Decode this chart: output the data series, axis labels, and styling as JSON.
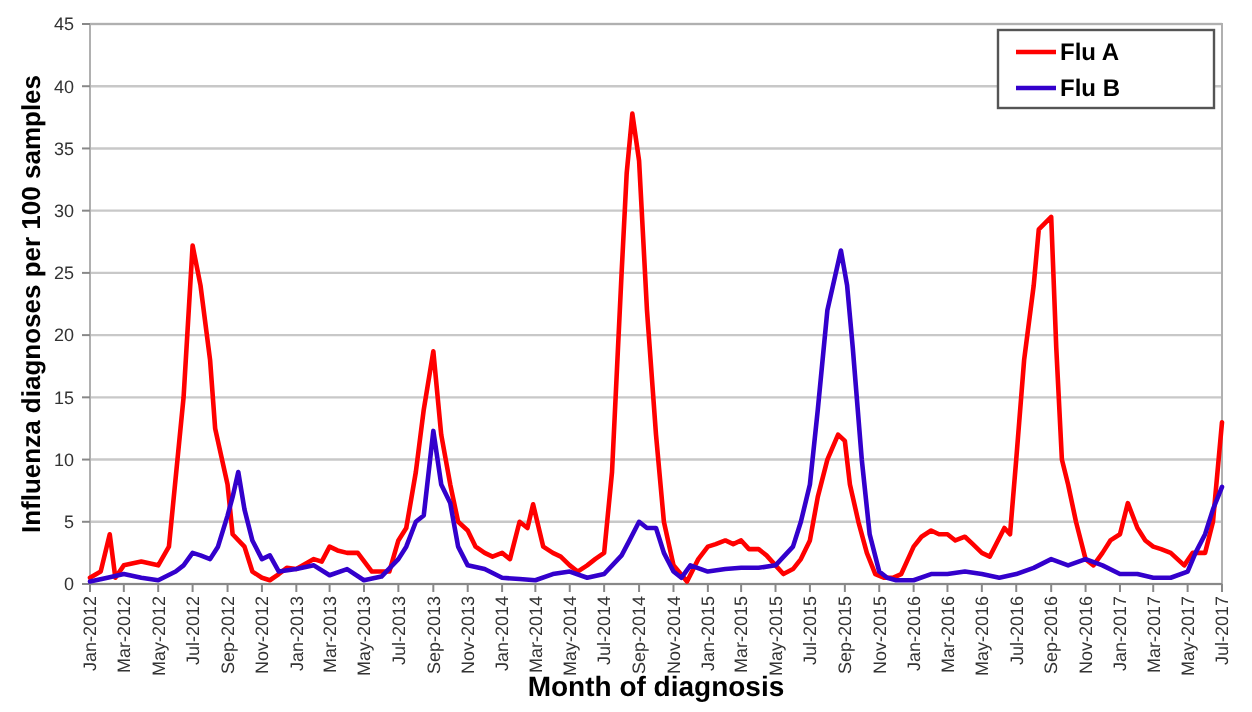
{
  "chart_data": {
    "type": "line",
    "xlabel": "Month of diagnosis",
    "ylabel": "Influenza diagnoses per 100 samples",
    "xlim": [
      "2012-01",
      "2017-07"
    ],
    "xticks": [
      {
        "value": "2012-01",
        "label": "Jan-2012"
      },
      {
        "value": "2012-03",
        "label": "Mar-2012"
      },
      {
        "value": "2012-05",
        "label": "May-2012"
      },
      {
        "value": "2012-07",
        "label": "Jul-2012"
      },
      {
        "value": "2012-09",
        "label": "Sep-2012"
      },
      {
        "value": "2012-11",
        "label": "Nov-2012"
      },
      {
        "value": "2013-01",
        "label": "Jan-2013"
      },
      {
        "value": "2013-03",
        "label": "Mar-2013"
      },
      {
        "value": "2013-05",
        "label": "May-2013"
      },
      {
        "value": "2013-07",
        "label": "Jul-2013"
      },
      {
        "value": "2013-09",
        "label": "Sep-2013"
      },
      {
        "value": "2013-11",
        "label": "Nov-2013"
      },
      {
        "value": "2014-01",
        "label": "Jan-2014"
      },
      {
        "value": "2014-03",
        "label": "Mar-2014"
      },
      {
        "value": "2014-05",
        "label": "May-2014"
      },
      {
        "value": "2014-07",
        "label": "Jul-2014"
      },
      {
        "value": "2014-09",
        "label": "Sep-2014"
      },
      {
        "value": "2014-11",
        "label": "Nov-2014"
      },
      {
        "value": "2015-01",
        "label": "Jan-2015"
      },
      {
        "value": "2015-03",
        "label": "Mar-2015"
      },
      {
        "value": "2015-05",
        "label": "May-2015"
      },
      {
        "value": "2015-07",
        "label": "Jul-2015"
      },
      {
        "value": "2015-09",
        "label": "Sep-2015"
      },
      {
        "value": "2015-11",
        "label": "Nov-2015"
      },
      {
        "value": "2016-01",
        "label": "Jan-2016"
      },
      {
        "value": "2016-03",
        "label": "Mar-2016"
      },
      {
        "value": "2016-05",
        "label": "May-2016"
      },
      {
        "value": "2016-07",
        "label": "Jul-2016"
      },
      {
        "value": "2016-09",
        "label": "Sep-2016"
      },
      {
        "value": "2016-11",
        "label": "Nov-2016"
      },
      {
        "value": "2017-01",
        "label": "Jan-2017"
      },
      {
        "value": "2017-03",
        "label": "Mar-2017"
      },
      {
        "value": "2017-05",
        "label": "May-2017"
      },
      {
        "value": "2017-07",
        "label": "Jul-2017"
      }
    ],
    "ylim": [
      0,
      45
    ],
    "yticks": [
      0,
      5,
      10,
      15,
      20,
      25,
      30,
      35,
      40,
      45
    ],
    "grid": "y",
    "legend": "top right",
    "marker": "none",
    "line_style": "solid",
    "series": [
      {
        "name": "Flu A",
        "color": "#ff0000",
        "x": [
          "2012-01-01",
          "2012-01-20",
          "2012-02-05",
          "2012-02-15",
          "2012-03-01",
          "2012-04-01",
          "2012-05-01",
          "2012-05-20",
          "2012-06-15",
          "2012-07-01",
          "2012-07-15",
          "2012-08-01",
          "2012-08-10",
          "2012-09-01",
          "2012-09-10",
          "2012-10-01",
          "2012-10-15",
          "2012-11-01",
          "2012-11-15",
          "2012-12-01",
          "2012-12-15",
          "2013-01-01",
          "2013-02-01",
          "2013-02-15",
          "2013-03-01",
          "2013-03-15",
          "2013-04-01",
          "2013-04-20",
          "2013-05-15",
          "2013-06-01",
          "2013-06-15",
          "2013-07-01",
          "2013-07-15",
          "2013-08-01",
          "2013-08-15",
          "2013-09-01",
          "2013-09-15",
          "2013-10-01",
          "2013-10-15",
          "2013-11-01",
          "2013-11-15",
          "2013-12-01",
          "2013-12-15",
          "2014-01-01",
          "2014-01-15",
          "2014-02-01",
          "2014-02-15",
          "2014-02-25",
          "2014-03-15",
          "2014-04-01",
          "2014-04-15",
          "2014-05-01",
          "2014-05-15",
          "2014-06-01",
          "2014-06-15",
          "2014-07-01",
          "2014-07-15",
          "2014-08-01",
          "2014-08-10",
          "2014-08-20",
          "2014-09-01",
          "2014-09-15",
          "2014-10-01",
          "2014-10-15",
          "2014-11-01",
          "2014-11-25",
          "2014-12-15",
          "2015-01-01",
          "2015-01-15",
          "2015-02-01",
          "2015-02-15",
          "2015-03-01",
          "2015-03-15",
          "2015-04-01",
          "2015-04-15",
          "2015-05-01",
          "2015-05-15",
          "2015-06-01",
          "2015-06-15",
          "2015-07-01",
          "2015-07-15",
          "2015-08-01",
          "2015-08-20",
          "2015-09-01",
          "2015-09-10",
          "2015-09-25",
          "2015-10-10",
          "2015-10-25",
          "2015-11-10",
          "2015-11-25",
          "2015-12-10",
          "2016-01-01",
          "2016-01-15",
          "2016-02-01",
          "2016-02-15",
          "2016-03-01",
          "2016-03-15",
          "2016-04-01",
          "2016-04-15",
          "2016-05-01",
          "2016-05-15",
          "2016-06-10",
          "2016-06-20",
          "2016-07-01",
          "2016-07-15",
          "2016-08-01",
          "2016-08-10",
          "2016-09-01",
          "2016-09-10",
          "2016-09-20",
          "2016-10-01",
          "2016-10-15",
          "2016-11-01",
          "2016-11-15",
          "2016-12-01",
          "2016-12-15",
          "2017-01-01",
          "2017-01-15",
          "2017-02-01",
          "2017-02-15",
          "2017-03-01",
          "2017-03-15",
          "2017-04-01",
          "2017-04-25",
          "2017-05-10",
          "2017-06-01",
          "2017-06-15",
          "2017-07-01"
        ],
        "values": [
          0.5,
          1,
          4,
          0.5,
          1.5,
          1.8,
          1.5,
          3,
          15,
          27.2,
          24,
          18,
          12.5,
          8,
          4,
          3,
          1,
          0.5,
          0.3,
          0.8,
          1.3,
          1.2,
          2,
          1.8,
          3,
          2.7,
          2.5,
          2.5,
          1,
          1,
          1,
          3.5,
          4.5,
          9,
          14,
          18.7,
          12,
          8,
          5,
          4.3,
          3,
          2.5,
          2.2,
          2.5,
          2,
          5,
          4.5,
          6.4,
          3,
          2.5,
          2.2,
          1.5,
          1,
          1.5,
          2,
          2.5,
          9,
          25,
          33,
          37.8,
          34,
          22,
          12,
          5,
          1.5,
          0.2,
          2,
          3,
          3.2,
          3.5,
          3.2,
          3.5,
          2.8,
          2.8,
          2.3,
          1.5,
          0.8,
          1.2,
          2,
          3.5,
          7,
          10,
          12,
          11.5,
          8,
          5,
          2.5,
          0.8,
          0.5,
          0.5,
          0.8,
          3,
          3.8,
          4.3,
          4,
          4,
          3.5,
          3.8,
          3.2,
          2.5,
          2.2,
          4.5,
          4,
          10,
          18,
          24,
          28.5,
          29.5,
          19,
          10,
          8,
          5,
          2,
          1.5,
          2.5,
          3.5,
          4,
          6.5,
          4.5,
          3.5,
          3,
          2.8,
          2.5,
          1.5,
          2.5,
          2.5,
          5,
          13
        ]
      },
      {
        "name": "Flu B",
        "color": "#3300cc",
        "x": [
          "2012-01-01",
          "2012-02-01",
          "2012-03-01",
          "2012-04-01",
          "2012-05-01",
          "2012-06-01",
          "2012-06-15",
          "2012-07-01",
          "2012-07-15",
          "2012-08-01",
          "2012-08-15",
          "2012-09-01",
          "2012-09-10",
          "2012-09-20",
          "2012-10-01",
          "2012-10-15",
          "2012-11-01",
          "2012-11-15",
          "2012-12-01",
          "2013-01-01",
          "2013-02-01",
          "2013-03-01",
          "2013-04-01",
          "2013-05-01",
          "2013-06-01",
          "2013-07-01",
          "2013-07-15",
          "2013-08-01",
          "2013-08-15",
          "2013-09-01",
          "2013-09-15",
          "2013-10-01",
          "2013-10-15",
          "2013-11-01",
          "2013-12-01",
          "2014-01-01",
          "2014-02-01",
          "2014-03-01",
          "2014-04-01",
          "2014-05-01",
          "2014-06-01",
          "2014-07-01",
          "2014-08-01",
          "2014-08-15",
          "2014-09-01",
          "2014-09-15",
          "2014-10-01",
          "2014-10-15",
          "2014-11-01",
          "2014-11-15",
          "2014-12-01",
          "2015-01-01",
          "2015-02-01",
          "2015-03-01",
          "2015-04-01",
          "2015-05-01",
          "2015-06-01",
          "2015-06-15",
          "2015-07-01",
          "2015-07-15",
          "2015-08-01",
          "2015-08-25",
          "2015-09-05",
          "2015-09-15",
          "2015-10-01",
          "2015-10-15",
          "2015-11-01",
          "2015-11-15",
          "2015-12-01",
          "2016-01-01",
          "2016-02-01",
          "2016-03-01",
          "2016-04-01",
          "2016-05-01",
          "2016-06-01",
          "2016-07-01",
          "2016-08-01",
          "2016-09-01",
          "2016-10-01",
          "2016-11-01",
          "2016-12-01",
          "2017-01-01",
          "2017-02-01",
          "2017-03-01",
          "2017-04-01",
          "2017-05-01",
          "2017-05-15",
          "2017-06-01",
          "2017-06-15",
          "2017-07-01"
        ],
        "values": [
          0.2,
          0.5,
          0.8,
          0.5,
          0.3,
          1,
          1.5,
          2.5,
          2.3,
          2,
          3,
          5.5,
          7,
          9,
          6,
          3.5,
          2,
          2.3,
          1,
          1.2,
          1.5,
          0.7,
          1.2,
          0.3,
          0.6,
          2,
          3,
          5,
          5.5,
          12.3,
          8,
          6.5,
          3,
          1.5,
          1.2,
          0.5,
          0.4,
          0.3,
          0.8,
          1,
          0.5,
          0.8,
          2.3,
          3.5,
          5,
          4.5,
          4.5,
          2.5,
          1,
          0.5,
          1.5,
          1,
          1.2,
          1.3,
          1.3,
          1.5,
          3,
          5,
          8,
          14,
          22,
          26.8,
          24,
          19,
          10,
          4,
          1,
          0.5,
          0.3,
          0.3,
          0.8,
          0.8,
          1,
          0.8,
          0.5,
          0.8,
          1.3,
          2,
          1.5,
          2,
          1.5,
          0.8,
          0.8,
          0.5,
          0.5,
          1,
          2.5,
          4,
          6,
          7.8
        ]
      }
    ]
  }
}
